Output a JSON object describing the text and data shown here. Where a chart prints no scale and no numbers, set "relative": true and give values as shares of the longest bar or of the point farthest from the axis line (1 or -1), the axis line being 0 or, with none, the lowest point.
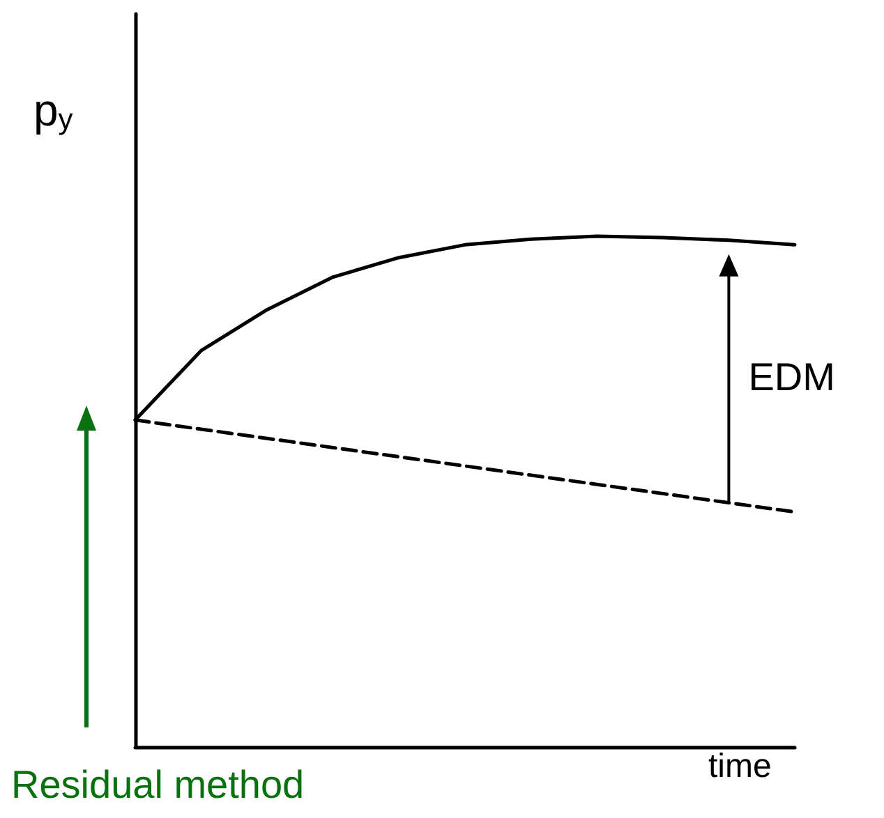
{
  "chart_data": {
    "type": "line",
    "relative": true,
    "xlabel": "time",
    "ylabel": "p$_{y}$",
    "categories": [
      null,
      null,
      null,
      null,
      null,
      null,
      null,
      null,
      null,
      null,
      null
    ],
    "series": [
      {
        "color": "#000000",
        "line_style": "solid",
        "values": [
          0.64,
          0.776,
          0.856,
          0.92,
          0.958,
          0.983,
          0.994,
          1.0,
          0.997,
          0.992,
          0.983
        ]
      },
      {
        "color": "#000000",
        "line_style": "dashed",
        "values": [
          0.64,
          0.622,
          0.604,
          0.586,
          0.568,
          0.55,
          0.532,
          0.514,
          0.496,
          0.478,
          0.46
        ]
      }
    ],
    "annotations": [
      "EDM",
      "Residual method"
    ],
    "marker": "none",
    "grid": false
  }
}
